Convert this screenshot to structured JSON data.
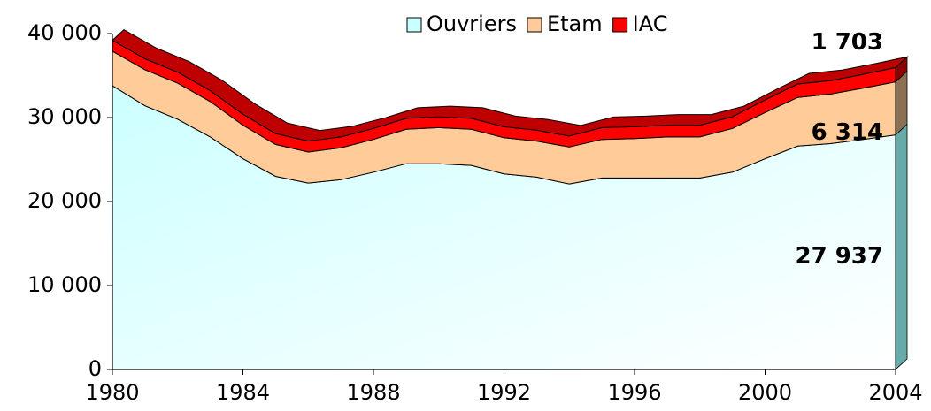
{
  "chart_data": {
    "type": "area",
    "stacked": true,
    "x": [
      1980,
      1981,
      1982,
      1983,
      1984,
      1985,
      1986,
      1987,
      1988,
      1989,
      1990,
      1991,
      1992,
      1993,
      1994,
      1995,
      1996,
      1997,
      1998,
      1999,
      2000,
      2001,
      2002,
      2003,
      2004
    ],
    "xlim": [
      1980,
      2004
    ],
    "xticks": [
      1980,
      1984,
      1988,
      1992,
      1996,
      2000,
      2004
    ],
    "ylim": [
      0,
      40000
    ],
    "yticks": [
      0,
      {
        "value": 10000,
        "label": "10 000"
      },
      {
        "value": 20000,
        "label": "20 000"
      },
      {
        "value": 30000,
        "label": "30 000"
      },
      {
        "value": 40000,
        "label": "40 000"
      }
    ],
    "legend": "top",
    "series": [
      {
        "name": "Ouvriers",
        "color": "#ccffff",
        "values": [
          33800,
          31400,
          29800,
          27700,
          25100,
          23000,
          22200,
          22600,
          23500,
          24500,
          24500,
          24300,
          23300,
          22900,
          22100,
          22800,
          22800,
          22800,
          22800,
          23500,
          25100,
          26600,
          26900,
          27400,
          27937
        ],
        "value_labels": [
          null,
          null,
          null,
          null,
          null,
          null,
          null,
          null,
          null,
          null,
          null,
          null,
          null,
          null,
          null,
          null,
          null,
          null,
          null,
          null,
          null,
          null,
          null,
          null,
          "27 937"
        ]
      },
      {
        "name": "Etam",
        "color": "#ffcc99",
        "values": [
          4100,
          4300,
          4300,
          4200,
          4000,
          3800,
          3700,
          3800,
          3900,
          4100,
          4300,
          4300,
          4300,
          4300,
          4400,
          4600,
          4700,
          4900,
          4900,
          5200,
          5500,
          5800,
          5900,
          6100,
          6314
        ],
        "value_labels": [
          null,
          null,
          null,
          null,
          null,
          null,
          null,
          null,
          null,
          null,
          null,
          null,
          null,
          null,
          null,
          null,
          null,
          null,
          null,
          null,
          null,
          null,
          null,
          null,
          "6 314"
        ]
      },
      {
        "name": "IAC",
        "color": "#ff0000",
        "values": [
          1300,
          1300,
          1300,
          1300,
          1300,
          1300,
          1300,
          1300,
          1300,
          1300,
          1300,
          1300,
          1300,
          1300,
          1300,
          1400,
          1400,
          1400,
          1400,
          1400,
          1500,
          1600,
          1600,
          1650,
          1703
        ],
        "value_labels": [
          null,
          null,
          null,
          null,
          null,
          null,
          null,
          null,
          null,
          null,
          null,
          null,
          null,
          null,
          null,
          null,
          null,
          null,
          null,
          null,
          null,
          null,
          null,
          null,
          "1 703"
        ]
      }
    ]
  }
}
